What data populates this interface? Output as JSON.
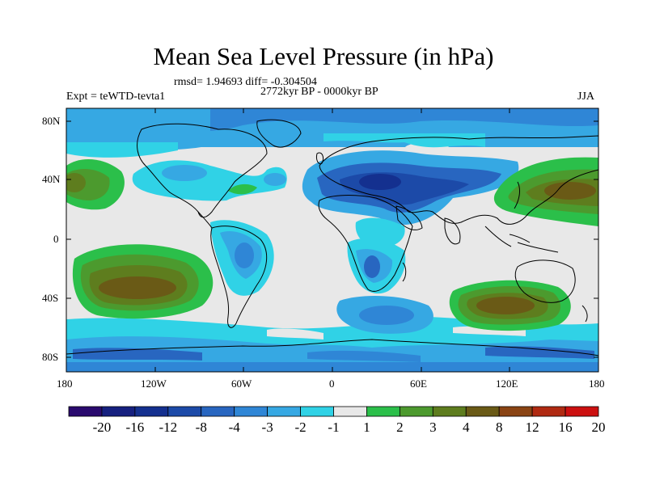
{
  "title": "Mean Sea Level Pressure (in hPa)",
  "stats_line": "rmsd= 1.94693 diff= -0.304504",
  "period_line": "2772kyr BP - 0000kyr BP",
  "experiment": "Expt = teWTD-tevta1",
  "season": "JJA",
  "lat_labels": [
    "80N",
    "40N",
    "0",
    "40S",
    "80S"
  ],
  "lon_labels": [
    "180",
    "120W",
    "60W",
    "0",
    "60E",
    "120E",
    "180"
  ],
  "colorbar": {
    "labels": [
      "-20",
      "-16",
      "-12",
      "-8",
      "-4",
      "-3",
      "-2",
      "-1",
      "1",
      "2",
      "3",
      "4",
      "8",
      "12",
      "16",
      "20"
    ],
    "colors": [
      "#2a0a6e",
      "#16207f",
      "#14308f",
      "#1c4aa8",
      "#2866c0",
      "#2f86d6",
      "#36a8e3",
      "#30d2e6",
      "#e8e8e8",
      "#2bbf4a",
      "#4c9a2e",
      "#5e7d1e",
      "#6a5a16",
      "#8a4414",
      "#b02a12",
      "#cc1010"
    ]
  }
}
